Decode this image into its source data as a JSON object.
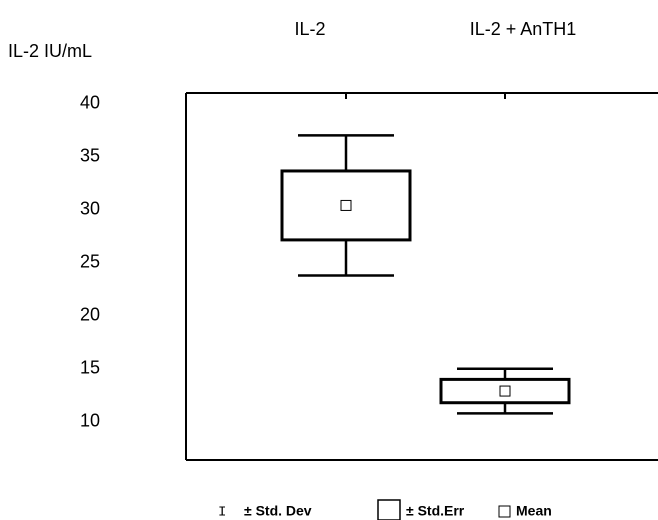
{
  "chart_data": {
    "type": "box",
    "y_axis_label": "IL-2 IU/mL",
    "categories": [
      "IL-2",
      "IL-2 + AnTH1"
    ],
    "mean": [
      30.4,
      12.9
    ],
    "std_err": [
      3.25,
      1.1
    ],
    "std_dev": [
      6.6,
      2.1
    ],
    "ylim": [
      6.4,
      41
    ],
    "yticks": [
      10,
      15,
      20,
      25,
      30,
      35,
      40
    ],
    "legend": {
      "std_dev": "± Std. Dev",
      "std_err": "± Std.Err",
      "mean": "Mean"
    },
    "color": "#000000"
  }
}
